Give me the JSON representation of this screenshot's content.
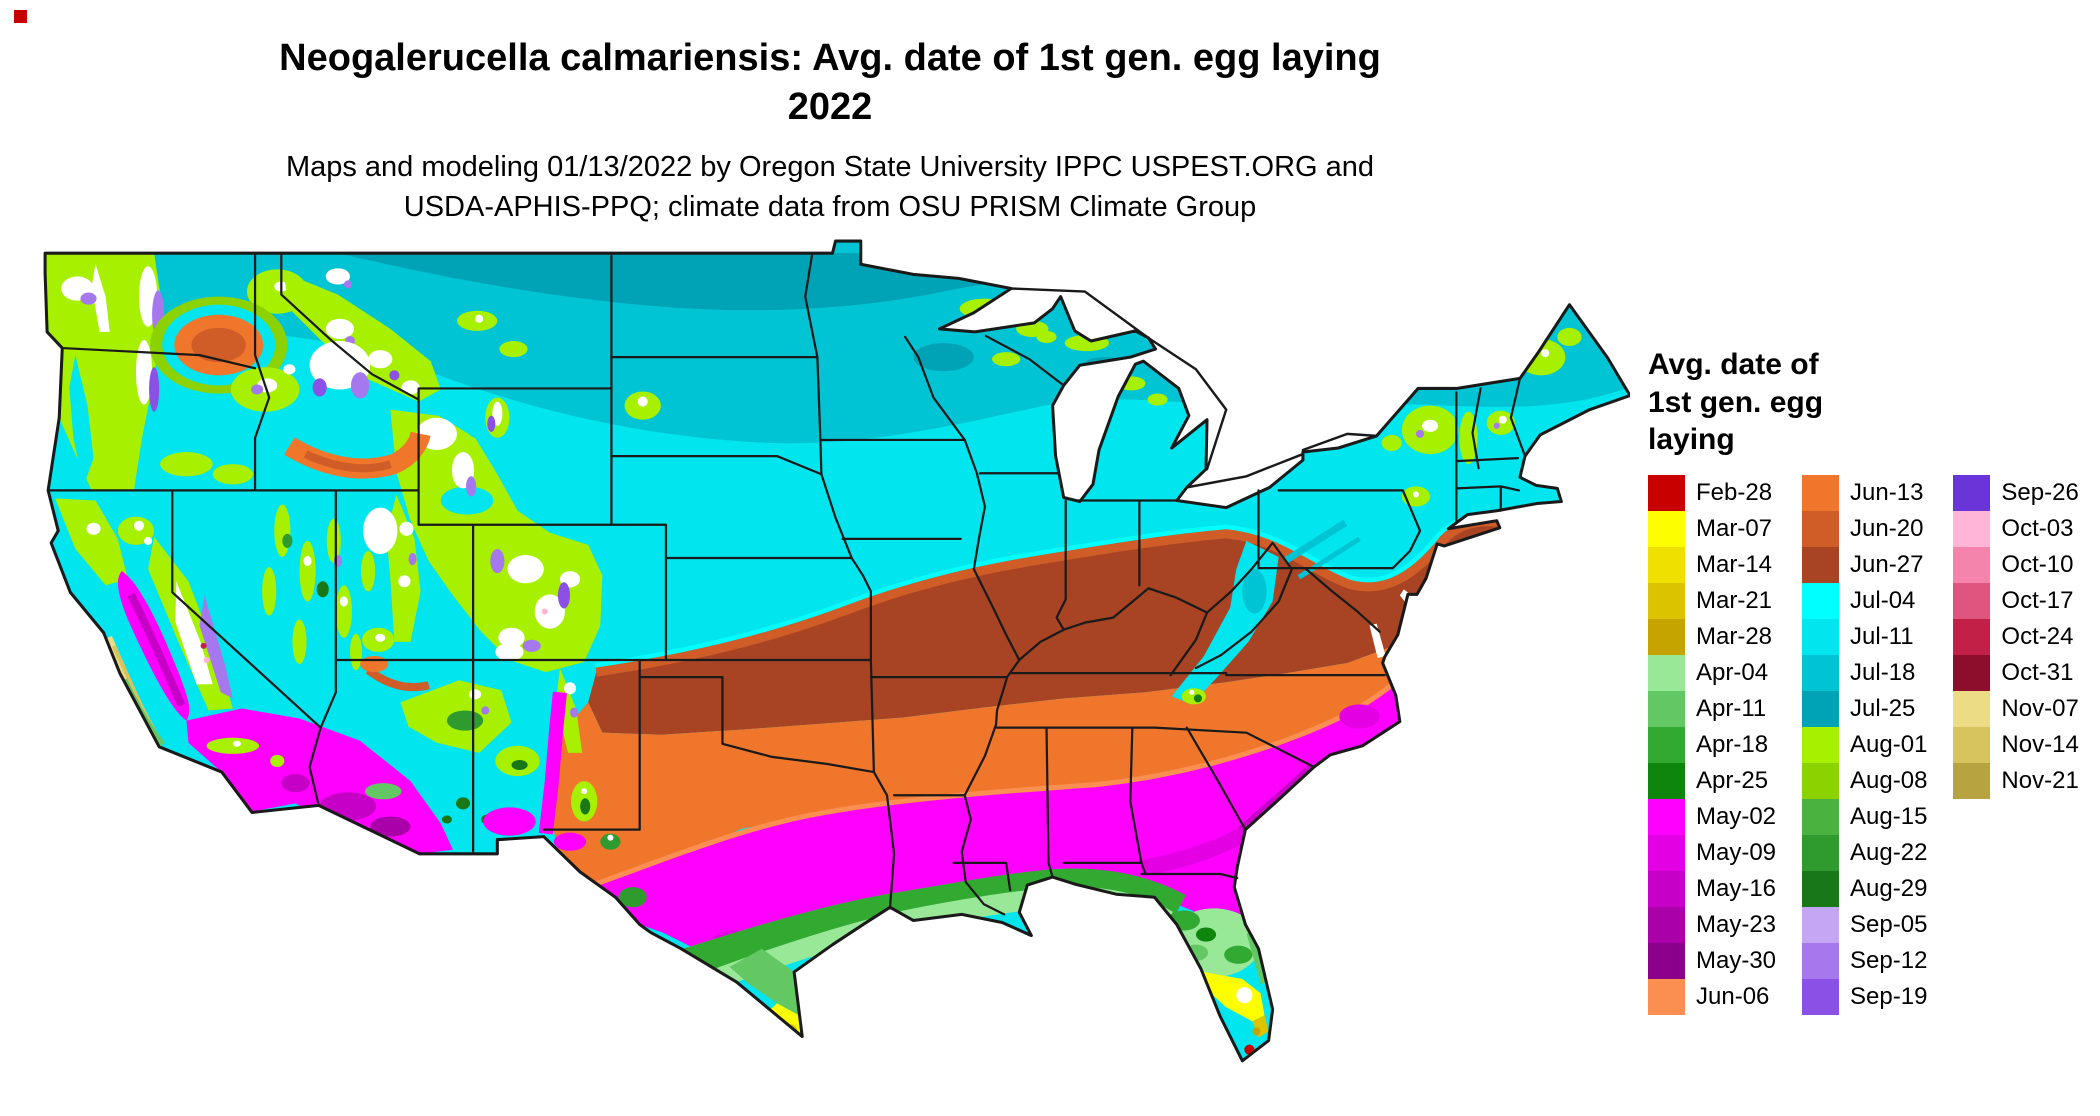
{
  "title": {
    "line1": "Neogalerucella calmariensis: Avg. date of 1st gen. egg laying",
    "line2": "2022"
  },
  "subtitle": {
    "line1": "Maps and modeling 01/13/2022 by Oregon State University IPPC USPEST.ORG and",
    "line2": "USDA-APHIS-PPQ; climate data from OSU PRISM Climate Group"
  },
  "legend": {
    "title_lines": [
      "Avg. date of",
      "1st gen. egg",
      "laying"
    ],
    "columns": [
      {
        "entries": [
          {
            "label": "Feb-28",
            "color": "#c80000"
          },
          {
            "label": "Mar-07",
            "color": "#fdff00"
          },
          {
            "label": "Mar-14",
            "color": "#f0e000"
          },
          {
            "label": "Mar-21",
            "color": "#dcc300"
          },
          {
            "label": "Mar-28",
            "color": "#c6a400"
          },
          {
            "label": "Apr-04",
            "color": "#98e898"
          },
          {
            "label": "Apr-11",
            "color": "#63c863"
          },
          {
            "label": "Apr-18",
            "color": "#32aa32"
          },
          {
            "label": "Apr-25",
            "color": "#0e860e"
          },
          {
            "label": "May-02",
            "color": "#ff00ff"
          },
          {
            "label": "May-09",
            "color": "#e300e3"
          },
          {
            "label": "May-16",
            "color": "#c600c6"
          },
          {
            "label": "May-23",
            "color": "#a900a9"
          },
          {
            "label": "May-30",
            "color": "#8b008b"
          },
          {
            "label": "Jun-06",
            "color": "#fb8e51"
          }
        ]
      },
      {
        "entries": [
          {
            "label": "Jun-13",
            "color": "#f0762b"
          },
          {
            "label": "Jun-20",
            "color": "#d05c28"
          },
          {
            "label": "Jun-27",
            "color": "#a84423"
          },
          {
            "label": "Jul-04",
            "color": "#00ffff"
          },
          {
            "label": "Jul-11",
            "color": "#00e5ee"
          },
          {
            "label": "Jul-18",
            "color": "#00c4d4"
          },
          {
            "label": "Jul-25",
            "color": "#00a3b6"
          },
          {
            "label": "Aug-01",
            "color": "#a7f000"
          },
          {
            "label": "Aug-08",
            "color": "#8cd200"
          },
          {
            "label": "Aug-15",
            "color": "#4ab23e"
          },
          {
            "label": "Aug-22",
            "color": "#2f9b2f"
          },
          {
            "label": "Aug-29",
            "color": "#187818"
          },
          {
            "label": "Sep-05",
            "color": "#c5a6f5"
          },
          {
            "label": "Sep-12",
            "color": "#a678ee"
          },
          {
            "label": "Sep-19",
            "color": "#8b51e6"
          }
        ]
      },
      {
        "entries": [
          {
            "label": "Sep-26",
            "color": "#6a35d8"
          },
          {
            "label": "Oct-03",
            "color": "#ffb5d5"
          },
          {
            "label": "Oct-10",
            "color": "#f584ad"
          },
          {
            "label": "Oct-17",
            "color": "#e0557f"
          },
          {
            "label": "Oct-24",
            "color": "#c22047"
          },
          {
            "label": "Oct-31",
            "color": "#8c0e2c"
          },
          {
            "label": "Nov-07",
            "color": "#ecdc85"
          },
          {
            "label": "Nov-14",
            "color": "#d8c45f"
          },
          {
            "label": "Nov-21",
            "color": "#b7a440"
          }
        ]
      }
    ]
  },
  "misc": {
    "corner_mark_color": "#c40000",
    "map_outline_color": "#1a1a1a",
    "background": "#ffffff"
  }
}
